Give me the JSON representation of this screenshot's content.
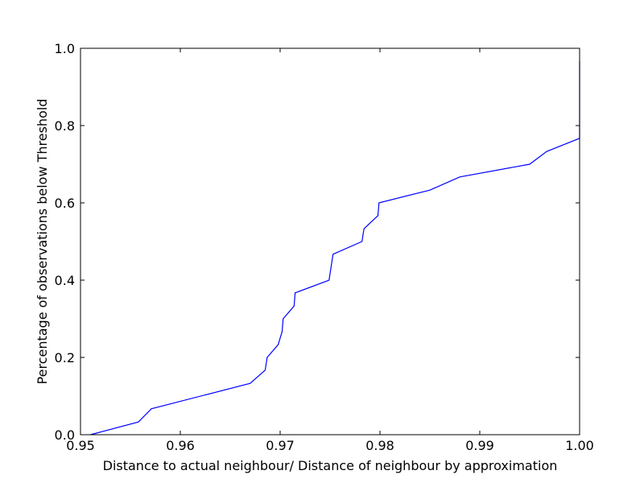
{
  "chart_data": {
    "type": "line",
    "xlabel": "Distance to actual neighbour/ Distance of neighbour by approximation",
    "ylabel": "Percentage of observations below Threshold",
    "xlim": [
      0.95,
      1.0
    ],
    "ylim": [
      0.0,
      1.0
    ],
    "xticks": [
      "0.95",
      "0.96",
      "0.97",
      "0.98",
      "0.99",
      "1.00"
    ],
    "yticks": [
      "0.0",
      "0.2",
      "0.4",
      "0.6",
      "0.8",
      "1.0"
    ],
    "grid": false,
    "series": [
      {
        "color": "#0000ff",
        "x": [
          0.951,
          0.9558,
          0.9571,
          0.967,
          0.9685,
          0.9687,
          0.9698,
          0.9702,
          0.9703,
          0.9714,
          0.9715,
          0.9749,
          0.9753,
          0.9782,
          0.9784,
          0.9798,
          0.9799,
          0.985,
          0.988,
          0.995,
          0.9967,
          1.0,
          1.0
        ],
        "y": [
          0.0,
          0.033,
          0.067,
          0.133,
          0.167,
          0.2,
          0.233,
          0.267,
          0.3,
          0.333,
          0.367,
          0.4,
          0.467,
          0.5,
          0.533,
          0.567,
          0.6,
          0.633,
          0.667,
          0.7,
          0.733,
          0.767,
          0.967
        ]
      }
    ]
  }
}
